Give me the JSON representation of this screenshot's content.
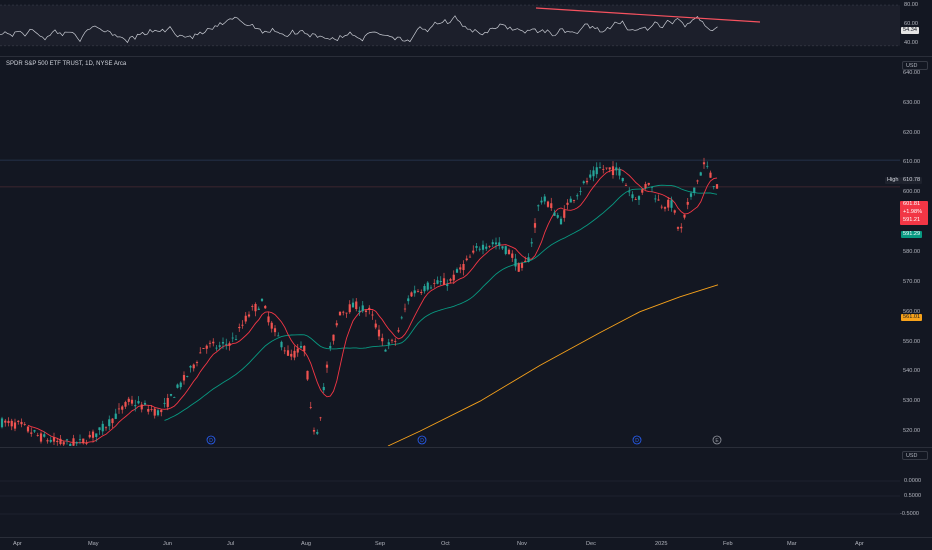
{
  "symbol_title": "SPDR S&P 500 ETF TRUST, 1D, NYSE Arca",
  "currency": "USD",
  "bottom_currency": "USD",
  "rsi": {
    "levels": [
      "80.00",
      "60.00",
      "40.00"
    ],
    "value": "54.34",
    "line_color": "#c9ccd4",
    "trendline_color": "#f7525f",
    "band_color": "#2a2e39"
  },
  "price_axis": [
    "640.00",
    "630.00",
    "620.00",
    "610.00",
    "600.00",
    "590.00",
    "580.00",
    "570.00",
    "560.00",
    "550.00",
    "540.00",
    "530.00",
    "520.00"
  ],
  "tags": {
    "high_label": "High",
    "high_value": "610.78",
    "last_price": "601.81",
    "last_change": "+1.98%",
    "last_extra": "591.21",
    "ma_green_value": "591.29",
    "ma_orange_value": "561.01"
  },
  "bottom_axis": [
    "0.0000",
    "0.5000",
    "-0.5000"
  ],
  "dates": [
    "Apr",
    "May",
    "Jun",
    "Jul",
    "Aug",
    "Sep",
    "Oct",
    "Nov",
    "Dec",
    "2025",
    "Feb",
    "Mar",
    "Apr"
  ],
  "event_markers": [
    "D",
    "D",
    "D",
    "E"
  ],
  "colors": {
    "up": "#26a69a",
    "down": "#ef5350",
    "ma_fast": "#f23645",
    "ma_mid": "#089981",
    "ma_slow": "#f7a21b",
    "background": "#131722",
    "grid": "#1e222d"
  },
  "price_range": [
    515,
    645
  ]
}
